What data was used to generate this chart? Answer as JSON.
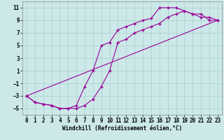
{
  "title": "",
  "xlabel": "Windchill (Refroidissement éolien,°C)",
  "bg_color": "#cce8e8",
  "line_color": "#990099",
  "marker": "+",
  "xlim": [
    -0.5,
    23.5
  ],
  "ylim": [
    -6,
    12
  ],
  "xticks": [
    0,
    1,
    2,
    3,
    4,
    5,
    6,
    7,
    8,
    9,
    10,
    11,
    12,
    13,
    14,
    15,
    16,
    17,
    18,
    19,
    20,
    21,
    22,
    23
  ],
  "yticks": [
    -5,
    -3,
    -1,
    1,
    3,
    5,
    7,
    9,
    11
  ],
  "curve1_x": [
    0,
    1,
    2,
    3,
    4,
    5,
    6,
    7,
    8,
    9,
    10,
    11,
    12,
    13,
    14,
    15,
    16,
    17,
    18,
    19,
    20,
    21,
    22,
    23
  ],
  "curve1_y": [
    -3,
    -4,
    -4.3,
    -4.5,
    -5,
    -5,
    -4.5,
    -1.5,
    1,
    5,
    5.5,
    7.5,
    8,
    8.5,
    9,
    9.3,
    11,
    11,
    11,
    10.5,
    10,
    9.5,
    9.5,
    9
  ],
  "curve2_x": [
    0,
    1,
    2,
    3,
    4,
    5,
    6,
    7,
    8,
    9,
    10,
    11,
    12,
    13,
    14,
    15,
    16,
    17,
    18,
    19,
    20,
    21,
    22,
    23
  ],
  "curve2_y": [
    -3,
    -4,
    -4.3,
    -4.5,
    -5,
    -5,
    -5,
    -4.5,
    -3.5,
    -1.5,
    1,
    5.5,
    6,
    7,
    7.5,
    8,
    8.5,
    9.5,
    10,
    10.5,
    10,
    10,
    9,
    9
  ],
  "curve3_x": [
    0,
    23
  ],
  "curve3_y": [
    -3,
    9
  ],
  "grid_color": "#aacfcf",
  "spine_color": "#888888",
  "xlabel_fontsize": 5.5,
  "tick_fontsize": 5.5,
  "linewidth": 0.8,
  "markersize": 3.5
}
